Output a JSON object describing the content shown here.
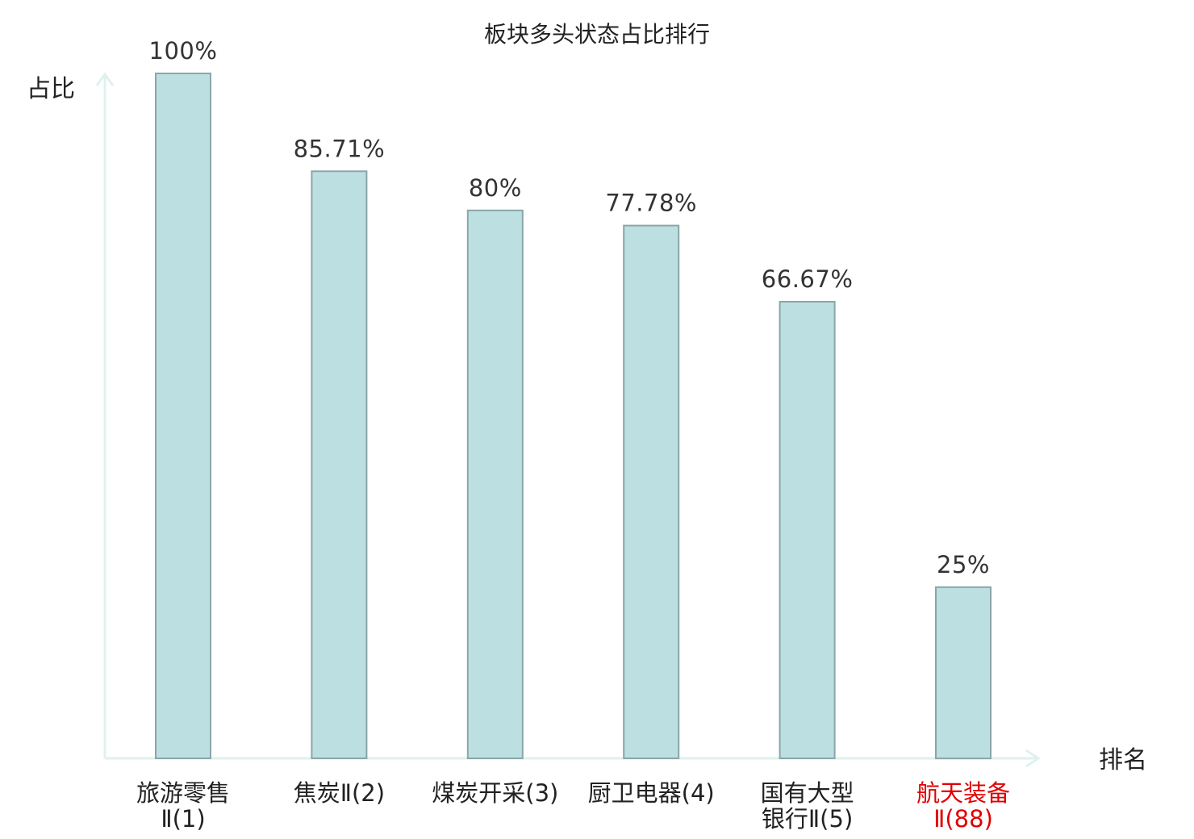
{
  "chart_data": {
    "type": "bar",
    "title": "板块多头状态占比排行",
    "ylabel": "占比",
    "xlabel": "排名",
    "ylim": [
      0,
      100
    ],
    "grid": false,
    "categories": [
      [
        "旅游零售",
        "Ⅱ(1)"
      ],
      [
        "焦炭Ⅱ(2)"
      ],
      [
        "煤炭开采(3)"
      ],
      [
        "厨卫电器(4)"
      ],
      [
        "国有大型",
        "银行Ⅱ(5)"
      ],
      [
        "航天装备",
        "Ⅱ(88)"
      ]
    ],
    "values": [
      100,
      85.71,
      80,
      77.78,
      66.67,
      25
    ],
    "value_labels": [
      "100%",
      "85.71%",
      "80%",
      "77.78%",
      "66.67%",
      "25%"
    ],
    "highlight_index": 5,
    "colors": {
      "bar_fill": "#bce0e2",
      "bar_stroke": "#8aa6a8",
      "axis": "#dff1ee",
      "highlight_text": "#e00000",
      "text": "#222222"
    }
  }
}
